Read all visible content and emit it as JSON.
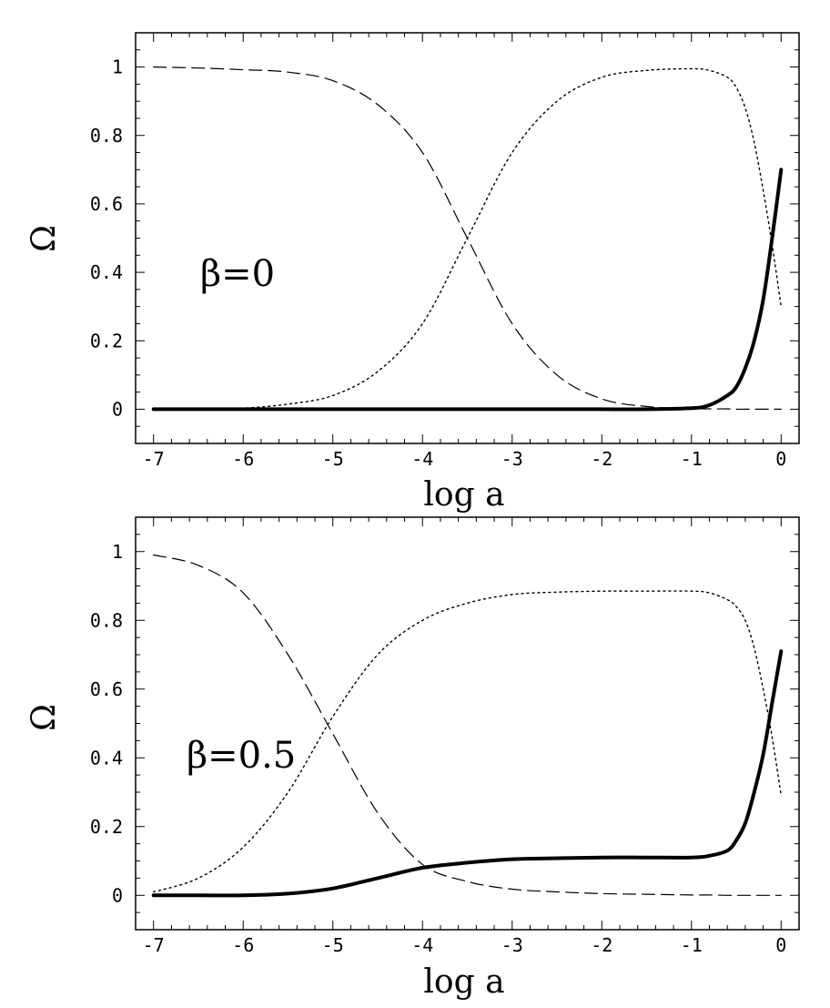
{
  "chart_data": [
    {
      "type": "line",
      "xlabel": "log a",
      "ylabel": "Ω",
      "xlim": [
        -7.2,
        0.2
      ],
      "ylim": [
        -0.1,
        1.1
      ],
      "grid": false,
      "xticks": [
        -7,
        -6,
        -5,
        -4,
        -3,
        -2,
        -1,
        0
      ],
      "yticks": [
        0,
        0.2,
        0.4,
        0.6,
        0.8,
        1
      ],
      "xtick_labels": [
        "-7",
        "-6",
        "-5",
        "-4",
        "-3",
        "-2",
        "-1",
        "0"
      ],
      "ytick_labels": [
        "0",
        "0.2",
        "0.4",
        "0.6",
        "0.8",
        "1"
      ],
      "annotation": "β=0",
      "x": [
        -7,
        -6.5,
        -6,
        -5.5,
        -5,
        -4.5,
        -4,
        -3.5,
        -3,
        -2.5,
        -2,
        -1.5,
        -1,
        -0.8,
        -0.6,
        -0.5,
        -0.4,
        -0.3,
        -0.2,
        -0.1,
        0
      ],
      "series": [
        {
          "style": "dashed",
          "values": [
            1.0,
            0.997,
            0.992,
            0.985,
            0.96,
            0.89,
            0.75,
            0.5,
            0.25,
            0.1,
            0.03,
            0.008,
            0.002,
            0.001,
            0.001,
            0.0,
            0.0,
            0.0,
            0.0,
            0.0,
            0.0
          ]
        },
        {
          "style": "dotted",
          "values": [
            0.0,
            0.0,
            0.003,
            0.015,
            0.04,
            0.11,
            0.25,
            0.5,
            0.75,
            0.9,
            0.97,
            0.99,
            0.995,
            0.99,
            0.97,
            0.94,
            0.88,
            0.78,
            0.64,
            0.48,
            0.3
          ]
        },
        {
          "style": "solid-thick",
          "values": [
            0.0,
            0.0,
            0.0,
            0.0,
            0.0,
            0.0,
            0.0,
            0.0,
            0.0,
            0.0,
            0.0,
            0.0,
            0.003,
            0.012,
            0.04,
            0.065,
            0.12,
            0.2,
            0.32,
            0.5,
            0.7
          ]
        }
      ]
    },
    {
      "type": "line",
      "xlabel": "log a",
      "ylabel": "Ω",
      "xlim": [
        -7.2,
        0.2
      ],
      "ylim": [
        -0.1,
        1.1
      ],
      "grid": false,
      "xticks": [
        -7,
        -6,
        -5,
        -4,
        -3,
        -2,
        -1,
        0
      ],
      "yticks": [
        0,
        0.2,
        0.4,
        0.6,
        0.8,
        1
      ],
      "xtick_labels": [
        "-7",
        "-6",
        "-5",
        "-4",
        "-3",
        "-2",
        "-1",
        "0"
      ],
      "ytick_labels": [
        "0",
        "0.2",
        "0.4",
        "0.6",
        "0.8",
        "1"
      ],
      "annotation": "β=0.5",
      "x": [
        -7,
        -6.5,
        -6,
        -5.5,
        -5,
        -4.5,
        -4,
        -3.5,
        -3,
        -2.5,
        -2,
        -1.5,
        -1,
        -0.8,
        -0.6,
        -0.5,
        -0.4,
        -0.3,
        -0.2,
        -0.1,
        0
      ],
      "series": [
        {
          "style": "dashed",
          "values": [
            0.99,
            0.96,
            0.88,
            0.7,
            0.47,
            0.24,
            0.09,
            0.04,
            0.018,
            0.01,
            0.005,
            0.003,
            0.001,
            0.001,
            0.0,
            0.0,
            0.0,
            0.0,
            0.0,
            0.0,
            0.0
          ]
        },
        {
          "style": "dotted",
          "values": [
            0.01,
            0.05,
            0.14,
            0.3,
            0.52,
            0.7,
            0.8,
            0.85,
            0.875,
            0.882,
            0.885,
            0.885,
            0.885,
            0.88,
            0.86,
            0.84,
            0.8,
            0.72,
            0.6,
            0.46,
            0.29
          ]
        },
        {
          "style": "solid-thick",
          "values": [
            0.0,
            0.0,
            0.0,
            0.005,
            0.02,
            0.05,
            0.08,
            0.095,
            0.105,
            0.108,
            0.11,
            0.11,
            0.11,
            0.115,
            0.13,
            0.16,
            0.21,
            0.3,
            0.41,
            0.56,
            0.71
          ]
        }
      ]
    }
  ]
}
